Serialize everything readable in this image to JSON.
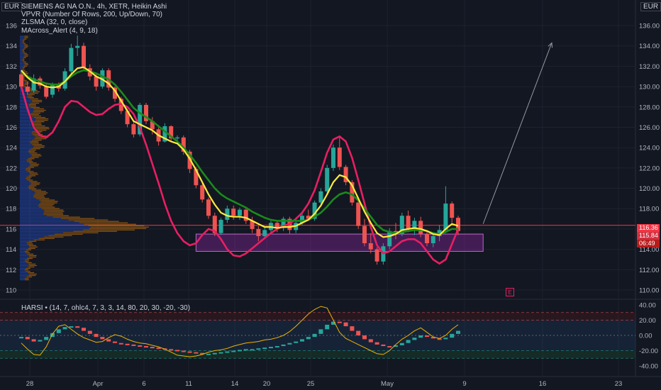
{
  "header": {
    "currency_left": "EUR",
    "currency_right": "EUR",
    "lines": [
      "SIEMENS AG NA O.N., 4h, XETR, Heikin Ashi",
      "VPVR (Number Of Rows, 200, Up/Down, 70)",
      "ZLSMA (32, 0, close)",
      "MAcross_Alert (4, 9, 18)"
    ]
  },
  "price_labels": {
    "current": "116.36",
    "second": "115.84",
    "countdown": "06:49"
  },
  "earnings_badge": "E",
  "harsi_legend": "HARSI • (14, 7, ohlc4, 7, 3, 3, 14, 80, 20, 30, -20, -30)",
  "colors": {
    "bull": "#26a69a",
    "bear": "#ef5350",
    "ma_fast": "#ffeb3b",
    "ma_slow": "#1b8a1b",
    "band": "#e91e63",
    "zone": "#9c27b0",
    "bg": "#131722",
    "grid": "#1e222d"
  },
  "chart_data": [
    {
      "type": "candlestick",
      "title": "SIEMENS AG NA O.N., 4h, XETR, Heikin Ashi",
      "ylim": [
        109,
        137
      ],
      "y_ticks": [
        110,
        112,
        114,
        116,
        118,
        120,
        122,
        124,
        126,
        128,
        130,
        132,
        134,
        136
      ],
      "x_ticks": [
        "28",
        "Apr",
        "6",
        "11",
        "14",
        "20",
        "25",
        "May",
        "9",
        "16",
        "23"
      ],
      "candles": [
        [
          131.2,
          131.5,
          129.8,
          130.0
        ],
        [
          130.0,
          130.5,
          129.2,
          129.5
        ],
        [
          129.6,
          131.2,
          129.4,
          130.8
        ],
        [
          130.8,
          131.0,
          129.8,
          130.1
        ],
        [
          130.0,
          130.2,
          128.8,
          129.0
        ],
        [
          129.2,
          130.4,
          128.9,
          130.2
        ],
        [
          130.1,
          130.4,
          129.5,
          129.8
        ],
        [
          129.8,
          131.8,
          129.6,
          131.5
        ],
        [
          131.5,
          134.2,
          131.2,
          133.8
        ],
        [
          133.8,
          135.0,
          133.0,
          134.0
        ],
        [
          134.0,
          134.3,
          131.5,
          131.9
        ],
        [
          131.8,
          132.2,
          130.6,
          131.0
        ],
        [
          131.0,
          131.2,
          129.6,
          130.0
        ],
        [
          130.0,
          131.8,
          129.8,
          131.6
        ],
        [
          131.6,
          131.8,
          129.6,
          129.9
        ],
        [
          129.9,
          130.0,
          128.5,
          128.8
        ],
        [
          128.8,
          129.0,
          127.3,
          127.6
        ],
        [
          127.6,
          127.8,
          126.0,
          126.3
        ],
        [
          126.3,
          126.5,
          125.0,
          125.3
        ],
        [
          125.3,
          128.4,
          125.1,
          128.2
        ],
        [
          128.2,
          128.4,
          126.3,
          126.6
        ],
        [
          126.6,
          127.0,
          125.3,
          125.8
        ],
        [
          125.8,
          126.0,
          124.2,
          124.6
        ],
        [
          124.6,
          126.4,
          124.5,
          126.1
        ],
        [
          126.1,
          126.2,
          124.6,
          124.9
        ],
        [
          124.9,
          125.2,
          124.6,
          125.0
        ],
        [
          125.0,
          125.2,
          123.3,
          123.6
        ],
        [
          123.6,
          123.8,
          121.5,
          121.9
        ],
        [
          121.9,
          122.1,
          120.0,
          120.3
        ],
        [
          120.3,
          120.5,
          118.6,
          118.9
        ],
        [
          118.9,
          119.1,
          117.0,
          117.3
        ],
        [
          117.3,
          117.6,
          115.3,
          115.6
        ],
        [
          115.6,
          117.1,
          115.4,
          116.9
        ],
        [
          116.9,
          118.3,
          116.6,
          118.0
        ],
        [
          118.0,
          118.3,
          116.9,
          117.3
        ],
        [
          117.3,
          118.1,
          116.9,
          117.9
        ],
        [
          117.9,
          118.0,
          116.5,
          116.8
        ],
        [
          116.8,
          117.2,
          115.6,
          116.0
        ],
        [
          116.0,
          116.3,
          114.8,
          115.3
        ],
        [
          115.3,
          116.2,
          115.0,
          115.9
        ],
        [
          115.9,
          116.8,
          115.6,
          116.6
        ],
        [
          116.6,
          116.8,
          115.7,
          116.1
        ],
        [
          116.1,
          117.2,
          115.8,
          117.0
        ],
        [
          117.0,
          117.2,
          115.5,
          115.9
        ],
        [
          115.9,
          116.8,
          115.6,
          116.6
        ],
        [
          116.6,
          117.6,
          116.4,
          117.3
        ],
        [
          117.3,
          117.9,
          116.8,
          117.0
        ],
        [
          117.0,
          118.8,
          116.8,
          118.6
        ],
        [
          118.6,
          120.0,
          118.3,
          119.7
        ],
        [
          119.7,
          122.3,
          119.4,
          122.0
        ],
        [
          122.0,
          124.3,
          121.7,
          124.0
        ],
        [
          124.0,
          125.0,
          121.8,
          122.1
        ],
        [
          122.1,
          122.3,
          120.3,
          120.6
        ],
        [
          120.6,
          120.8,
          118.3,
          118.6
        ],
        [
          118.6,
          118.8,
          116.0,
          116.3
        ],
        [
          116.3,
          117.0,
          114.3,
          114.6
        ],
        [
          114.6,
          115.6,
          113.6,
          114.0
        ],
        [
          114.0,
          114.2,
          112.5,
          112.8
        ],
        [
          112.8,
          114.6,
          112.5,
          114.3
        ],
        [
          114.3,
          116.1,
          114.0,
          115.8
        ],
        [
          115.8,
          116.6,
          115.0,
          115.5
        ],
        [
          115.5,
          117.6,
          115.3,
          117.3
        ],
        [
          117.3,
          117.8,
          115.7,
          116.0
        ],
        [
          116.0,
          117.1,
          115.4,
          116.8
        ],
        [
          116.8,
          117.2,
          115.2,
          115.5
        ],
        [
          115.5,
          115.7,
          114.3,
          114.6
        ],
        [
          114.6,
          115.6,
          114.2,
          115.3
        ],
        [
          115.3,
          116.4,
          114.8,
          115.9
        ],
        [
          115.9,
          120.2,
          115.6,
          118.5
        ],
        [
          118.5,
          118.7,
          116.6,
          117.1
        ],
        [
          117.1,
          117.3,
          115.4,
          115.8
        ]
      ],
      "series": [
        {
          "name": "MA fast",
          "values": [
            131.6,
            130.9,
            130.4,
            130.3,
            130.0,
            129.9,
            130.0,
            130.5,
            131.2,
            131.8,
            131.9,
            131.5,
            131.0,
            130.7,
            130.3,
            129.6,
            128.6,
            127.6,
            126.6,
            126.3,
            126.0,
            125.7,
            125.2,
            124.9,
            124.6,
            124.4,
            123.8,
            122.9,
            121.8,
            120.6,
            119.4,
            118.4,
            117.6,
            117.3,
            117.2,
            117.2,
            117.1,
            116.8,
            116.5,
            116.2,
            116.2,
            116.1,
            116.2,
            116.2,
            116.3,
            116.6,
            116.9,
            117.5,
            118.3,
            119.4,
            120.6,
            121.3,
            121.1,
            120.3,
            119.0,
            117.7,
            116.6,
            115.6,
            115.2,
            115.3,
            115.5,
            115.9,
            116.0,
            116.1,
            116.0,
            115.8,
            115.5,
            115.4,
            116.0,
            116.5,
            116.3
          ]
        },
        {
          "name": "MA slow",
          "values": [
            131.4,
            131.0,
            130.7,
            130.5,
            130.3,
            130.2,
            130.2,
            130.5,
            131.0,
            131.4,
            131.6,
            131.5,
            131.3,
            131.0,
            130.7,
            130.2,
            129.5,
            128.7,
            127.9,
            127.4,
            127.0,
            126.6,
            126.1,
            125.6,
            125.1,
            124.6,
            124.0,
            123.3,
            122.5,
            121.6,
            120.8,
            120.0,
            119.4,
            119.0,
            118.7,
            118.4,
            118.1,
            117.7,
            117.4,
            117.1,
            116.9,
            116.8,
            116.8,
            116.8,
            116.8,
            116.8,
            116.9,
            117.2,
            117.6,
            118.2,
            118.9,
            119.4,
            119.6,
            119.4,
            118.8,
            118.0,
            117.2,
            116.4,
            115.9,
            115.7,
            115.6,
            115.7,
            115.8,
            115.9,
            115.9,
            115.8,
            115.6,
            115.5,
            115.7,
            116.0,
            116.0
          ]
        },
        {
          "name": "Band",
          "values": [
            130.0,
            127.8,
            126.0,
            125.2,
            125.0,
            125.5,
            126.6,
            128.0,
            128.6,
            128.5,
            128.0,
            127.5,
            127.2,
            127.3,
            127.8,
            128.2,
            128.3,
            128.0,
            127.3,
            126.0,
            124.3,
            122.4,
            120.5,
            118.5,
            116.8,
            115.6,
            114.8,
            114.4,
            114.6,
            115.4,
            116.0,
            115.8,
            115.0,
            114.0,
            113.4,
            113.3,
            113.6,
            114.1,
            114.6,
            115.1,
            115.6,
            116.0,
            116.3,
            116.5,
            117.0,
            117.6,
            118.5,
            119.8,
            121.6,
            123.5,
            124.8,
            125.1,
            124.6,
            123.0,
            120.8,
            118.5,
            116.2,
            114.4,
            113.6,
            113.8,
            114.3,
            114.8,
            115.0,
            115.0,
            114.6,
            113.8,
            113.0,
            112.6,
            113.0,
            114.5,
            116.0
          ]
        }
      ],
      "zone": {
        "x_from": 28,
        "x_to": 74,
        "y_from": 113.8,
        "y_to": 115.5
      },
      "arrow": {
        "from": [
          74,
          116.5
        ],
        "to": [
          85,
          134.3
        ]
      },
      "price_line": 116.36
    },
    {
      "type": "bar",
      "title": "HARSI • (14, 7, ohlc4, 7, 3, 3, 14, 80, 20, 30, -20, -30)",
      "ylim": [
        -45,
        45
      ],
      "y_ticks": [
        40,
        20,
        0,
        -20,
        -40
      ],
      "values": [
        -2,
        -5,
        -8,
        -6,
        -2,
        3,
        8,
        11,
        12,
        10,
        6,
        2,
        -2,
        -5,
        -8,
        -10,
        -11,
        -12,
        -13,
        -14,
        -15,
        -16,
        -17,
        -18,
        -19,
        -20,
        -21,
        -22,
        -23,
        -24,
        -24,
        -23,
        -22,
        -21,
        -20,
        -19,
        -18,
        -18,
        -17,
        -16,
        -15,
        -14,
        -12,
        -10,
        -8,
        -5,
        -2,
        2,
        8,
        14,
        18,
        17,
        12,
        6,
        0,
        -5,
        -9,
        -12,
        -14,
        -15,
        -13,
        -10,
        -6,
        -3,
        0,
        -2,
        -4,
        -5,
        -3,
        2,
        6
      ],
      "signal": [
        -10,
        -18,
        -25,
        -26,
        -15,
        2,
        12,
        14,
        8,
        2,
        -3,
        -6,
        -9,
        -8,
        -3,
        1,
        -1,
        -5,
        -8,
        -10,
        -11,
        -13,
        -15,
        -18,
        -22,
        -26,
        -27,
        -28,
        -27,
        -25,
        -22,
        -20,
        -19,
        -17,
        -14,
        -12,
        -10,
        -9,
        -8,
        -6,
        -5,
        -3,
        0,
        5,
        12,
        20,
        28,
        34,
        38,
        36,
        20,
        4,
        -4,
        -8,
        -12,
        -16,
        -20,
        -24,
        -25,
        -20,
        -12,
        -5,
        0,
        6,
        10,
        4,
        -2,
        -4,
        0,
        8,
        14
      ],
      "levels": [
        30,
        20,
        -20,
        -30
      ]
    }
  ]
}
